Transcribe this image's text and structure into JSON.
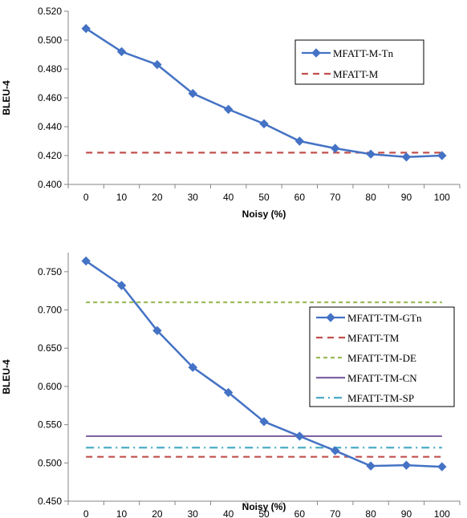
{
  "chart_data": [
    {
      "type": "line",
      "xlabel": "Noisy (%)",
      "ylabel": "BLEU-4",
      "x": [
        0,
        10,
        20,
        30,
        40,
        50,
        60,
        70,
        80,
        90,
        100
      ],
      "ylim": [
        0.4,
        0.52
      ],
      "yticks": [
        0.4,
        0.42,
        0.44,
        0.46,
        0.48,
        0.5,
        0.52
      ],
      "ytick_labels": [
        "0.400",
        "0.420",
        "0.440",
        "0.460",
        "0.480",
        "0.500",
        "0.520"
      ],
      "grid": false,
      "legend_position": "top-right",
      "series": [
        {
          "name": "MFATT-M-Tn",
          "style": "solid-diamond",
          "color": "#4472C4",
          "values": [
            0.508,
            0.492,
            0.483,
            0.463,
            0.452,
            0.442,
            0.43,
            0.425,
            0.421,
            0.419,
            0.42
          ]
        },
        {
          "name": "MFATT-M",
          "style": "dashed",
          "color": "#C0504D",
          "values": [
            0.422,
            0.422,
            0.422,
            0.422,
            0.422,
            0.422,
            0.422,
            0.422,
            0.422,
            0.422,
            0.422
          ]
        }
      ]
    },
    {
      "type": "line",
      "xlabel": "Noisy (%)",
      "ylabel": "BLEU-4",
      "x": [
        0,
        10,
        20,
        30,
        40,
        50,
        60,
        70,
        80,
        90,
        100
      ],
      "ylim": [
        0.45,
        0.775
      ],
      "yticks": [
        0.45,
        0.5,
        0.55,
        0.6,
        0.65,
        0.7,
        0.75
      ],
      "ytick_labels": [
        "0.450",
        "0.500",
        "0.550",
        "0.600",
        "0.650",
        "0.700",
        "0.750"
      ],
      "grid": false,
      "legend_position": "right",
      "series": [
        {
          "name": "MFATT-TM-GTn",
          "style": "solid-diamond",
          "color": "#4472C4",
          "values": [
            0.764,
            0.732,
            0.673,
            0.625,
            0.592,
            0.554,
            0.535,
            0.516,
            0.496,
            0.497,
            0.495
          ]
        },
        {
          "name": "MFATT-TM",
          "style": "dashed",
          "color": "#C0504D",
          "values": [
            0.508,
            0.508,
            0.508,
            0.508,
            0.508,
            0.508,
            0.508,
            0.508,
            0.508,
            0.508,
            0.508
          ]
        },
        {
          "name": "MFATT-TM-DE",
          "style": "dashed-short",
          "color": "#9BBB59",
          "values": [
            0.71,
            0.71,
            0.71,
            0.71,
            0.71,
            0.71,
            0.71,
            0.71,
            0.71,
            0.71,
            0.71
          ]
        },
        {
          "name": "MFATT-TM-CN",
          "style": "solid",
          "color": "#8064A2",
          "values": [
            0.535,
            0.535,
            0.535,
            0.535,
            0.535,
            0.535,
            0.535,
            0.535,
            0.535,
            0.535,
            0.535
          ]
        },
        {
          "name": "MFATT-TM-SP",
          "style": "dash-dot",
          "color": "#4BACC6",
          "values": [
            0.52,
            0.52,
            0.52,
            0.52,
            0.52,
            0.52,
            0.52,
            0.52,
            0.52,
            0.52,
            0.52
          ]
        }
      ]
    }
  ]
}
